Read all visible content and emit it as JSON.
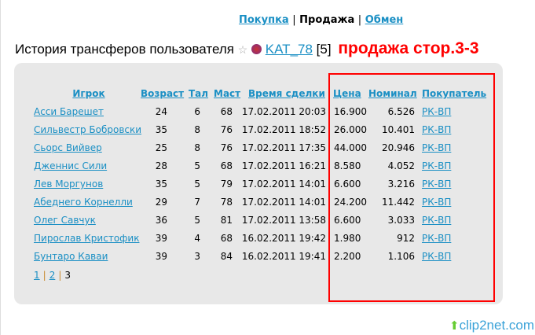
{
  "nav": {
    "items": [
      {
        "label": "Покупка",
        "active": false
      },
      {
        "label": "Продажа",
        "active": true
      },
      {
        "label": "Обмен",
        "active": false
      }
    ],
    "separator": "|"
  },
  "title": {
    "text": "История трансферов пользователя",
    "star_icon": "star-icon",
    "flag_icon": "russia-emblem-icon",
    "user": "KAT_78",
    "level": "[5]",
    "annotation": "продажа стор.3-3"
  },
  "table": {
    "headers": [
      "Игрок",
      "Возраст",
      "Тал",
      "Маст",
      "Время сделки",
      "Цена",
      "Номинал",
      "Покупатель"
    ],
    "rows": [
      [
        "Асси Барешет",
        "24",
        "6",
        "68",
        "17.02.2011 20:03",
        "16.900",
        "6.526",
        "РК-ВП"
      ],
      [
        "Сильвестр Бобровски",
        "35",
        "8",
        "76",
        "17.02.2011 18:52",
        "26.000",
        "10.401",
        "РК-ВП"
      ],
      [
        "Сьорс Вийвер",
        "25",
        "8",
        "76",
        "17.02.2011 17:35",
        "44.000",
        "20.946",
        "РК-ВП"
      ],
      [
        "Дженнис Сили",
        "28",
        "5",
        "68",
        "17.02.2011 16:21",
        "8.580",
        "4.052",
        "РК-ВП"
      ],
      [
        "Лев Моргунов",
        "35",
        "5",
        "79",
        "17.02.2011 14:01",
        "6.600",
        "3.216",
        "РК-ВП"
      ],
      [
        "Абеднего Корнелли",
        "29",
        "7",
        "78",
        "17.02.2011 14:01",
        "24.200",
        "11.442",
        "РК-ВП"
      ],
      [
        "Олег Савчук",
        "36",
        "5",
        "81",
        "17.02.2011 13:58",
        "6.600",
        "3.033",
        "РК-ВП"
      ],
      [
        "Пирослав Кристофик",
        "39",
        "4",
        "68",
        "16.02.2011 19:42",
        "1.980",
        "912",
        "РК-ВП"
      ],
      [
        "Бунтаро Каваи",
        "39",
        "3",
        "84",
        "16.02.2011 19:41",
        "2.200",
        "1.106",
        "РК-ВП"
      ]
    ]
  },
  "pagination": {
    "pages": [
      "1",
      "2",
      "3"
    ],
    "current": "3"
  },
  "watermark": "clip2net.com",
  "colors": {
    "link": "#1a8fc4",
    "highlight": "#ff0000",
    "panel": "#e8e8e8"
  }
}
